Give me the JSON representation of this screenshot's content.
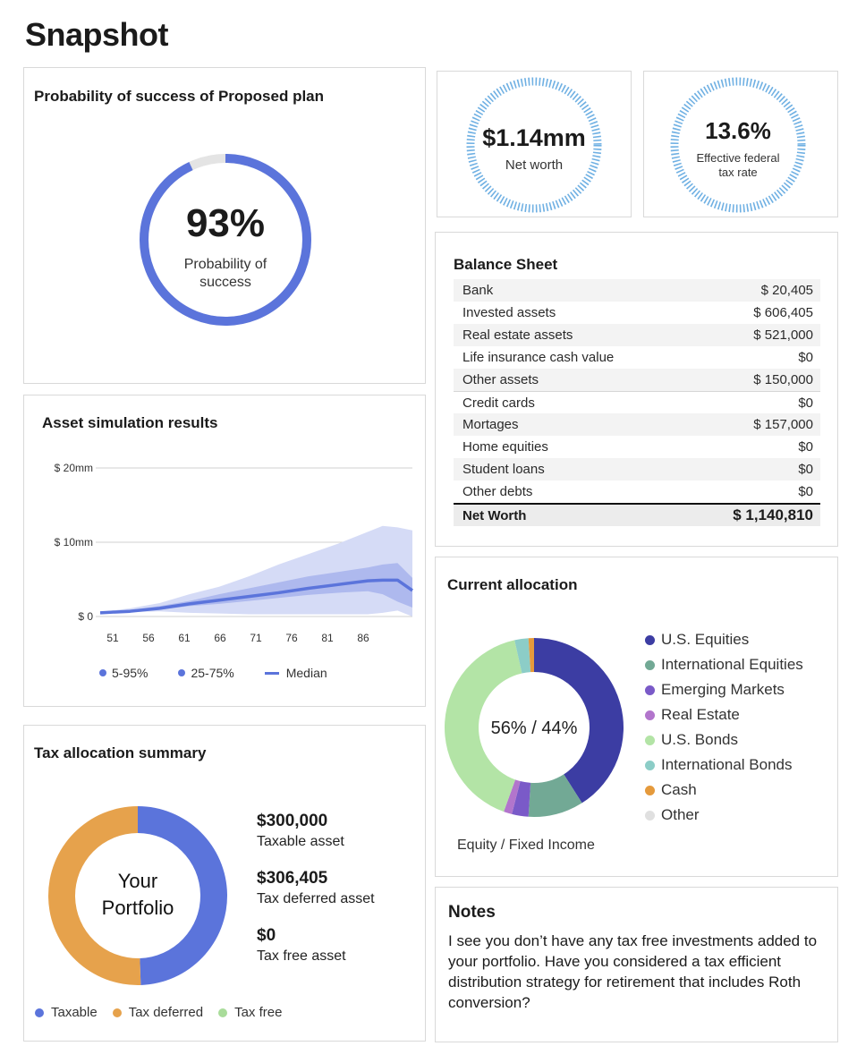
{
  "page_title": "Snapshot",
  "colors": {
    "primary_blue": "#5b74db",
    "ring_blue": "#6fb0e3",
    "tax_orange": "#e6a24c",
    "tax_green": "#a9dc9a"
  },
  "probability": {
    "title": "Probability of success of Proposed plan",
    "value": "93%",
    "percent": 93,
    "label_line1": "Probability of",
    "label_line2": "success"
  },
  "net_worth": {
    "value": "$1.14mm",
    "label": "Net worth"
  },
  "tax_rate": {
    "value": "13.6%",
    "label_line1": "Effective federal",
    "label_line2": "tax rate"
  },
  "balance_sheet": {
    "title": "Balance Sheet",
    "rows": [
      {
        "label": "Bank",
        "value": "$ 20,405"
      },
      {
        "label": "Invested assets",
        "value": "$ 606,405"
      },
      {
        "label": "Real estate assets",
        "value": "$ 521,000"
      },
      {
        "label": "Life insurance cash value",
        "value": "$0"
      },
      {
        "label": "Other assets",
        "value": "$ 150,000"
      },
      {
        "label": "Credit cards",
        "value": "$0"
      },
      {
        "label": "Mortages",
        "value": "$ 157,000"
      },
      {
        "label": "Home equities",
        "value": "$0"
      },
      {
        "label": "Student loans",
        "value": "$0"
      },
      {
        "label": "Other debts",
        "value": "$0"
      }
    ],
    "total_label": "Net  Worth",
    "total_value": "$ 1,140,810"
  },
  "asset_simulation": {
    "title": "Asset simulation results",
    "legend": [
      "5-95%",
      "25-75%",
      "Median"
    ]
  },
  "chart_data": {
    "type": "area",
    "title": "Asset simulation results",
    "x_ticks": [
      "51",
      "56",
      "61",
      "66",
      "71",
      "76",
      "81",
      "86"
    ],
    "y_ticks": [
      "$ 0",
      "$ 10mm",
      "$ 20mm"
    ],
    "ylim": [
      0,
      20
    ],
    "x": [
      50,
      54,
      58,
      62,
      66,
      70,
      74,
      78,
      82,
      86,
      88,
      90,
      92
    ],
    "series": [
      {
        "name": "5-95%",
        "low": [
          0.5,
          0.6,
          0.7,
          0.5,
          0.4,
          0.3,
          0.3,
          0.3,
          0.3,
          0.3,
          0.5,
          0.8,
          0.0
        ],
        "high": [
          0.6,
          1.1,
          1.8,
          3.0,
          4.0,
          5.4,
          7.0,
          8.4,
          9.8,
          11.4,
          12.2,
          12.0,
          11.6
        ]
      },
      {
        "name": "25-75%",
        "low": [
          0.5,
          0.6,
          0.9,
          1.4,
          1.7,
          2.1,
          2.5,
          2.9,
          3.2,
          3.4,
          3.0,
          2.0,
          1.2
        ],
        "high": [
          0.6,
          0.9,
          1.4,
          2.1,
          3.0,
          3.8,
          4.6,
          5.4,
          6.0,
          6.6,
          7.0,
          7.2,
          5.2
        ]
      },
      {
        "name": "Median",
        "values": [
          0.5,
          0.7,
          1.1,
          1.7,
          2.2,
          2.7,
          3.2,
          3.8,
          4.3,
          4.8,
          4.9,
          4.9,
          3.5
        ]
      }
    ],
    "grid": true,
    "legend_position": "bottom"
  },
  "allocation": {
    "title": "Current  allocation",
    "center_text": "56% / 44%",
    "caption": "Equity / Fixed Income",
    "slices": [
      {
        "name": "U.S. Equities",
        "value": 41,
        "color": "#3c3da3"
      },
      {
        "name": "International Equities",
        "value": 10,
        "color": "#72a995"
      },
      {
        "name": "Emerging Markets",
        "value": 3,
        "color": "#7a5ac8"
      },
      {
        "name": "Real Estate",
        "value": 1.5,
        "color": "#b275cc"
      },
      {
        "name": "U.S. Bonds",
        "value": 41,
        "color": "#b3e4a6"
      },
      {
        "name": "International Bonds",
        "value": 2.5,
        "color": "#8ccdc7"
      },
      {
        "name": "Cash",
        "value": 1,
        "color": "#e59a3c"
      },
      {
        "name": "Other",
        "value": 0,
        "color": "#e0e0e0"
      }
    ]
  },
  "tax_summary": {
    "title": "Tax allocation summary",
    "center_line1": "Your",
    "center_line2": "Portfolio",
    "items": [
      {
        "value": "$300,000",
        "label": "Taxable asset"
      },
      {
        "value": "$306,405",
        "label": "Tax deferred asset"
      },
      {
        "value": "$0",
        "label": "Tax free asset"
      }
    ],
    "legend": [
      "Taxable",
      "Tax deferred",
      "Tax free"
    ],
    "shares": [
      300000,
      306405,
      0
    ]
  },
  "notes": {
    "title": "Notes",
    "body": "I see you don’t have any tax free investments added to your portfolio. Have you considered a tax efficient distribution strategy for retirement that includes Roth conversion?"
  }
}
